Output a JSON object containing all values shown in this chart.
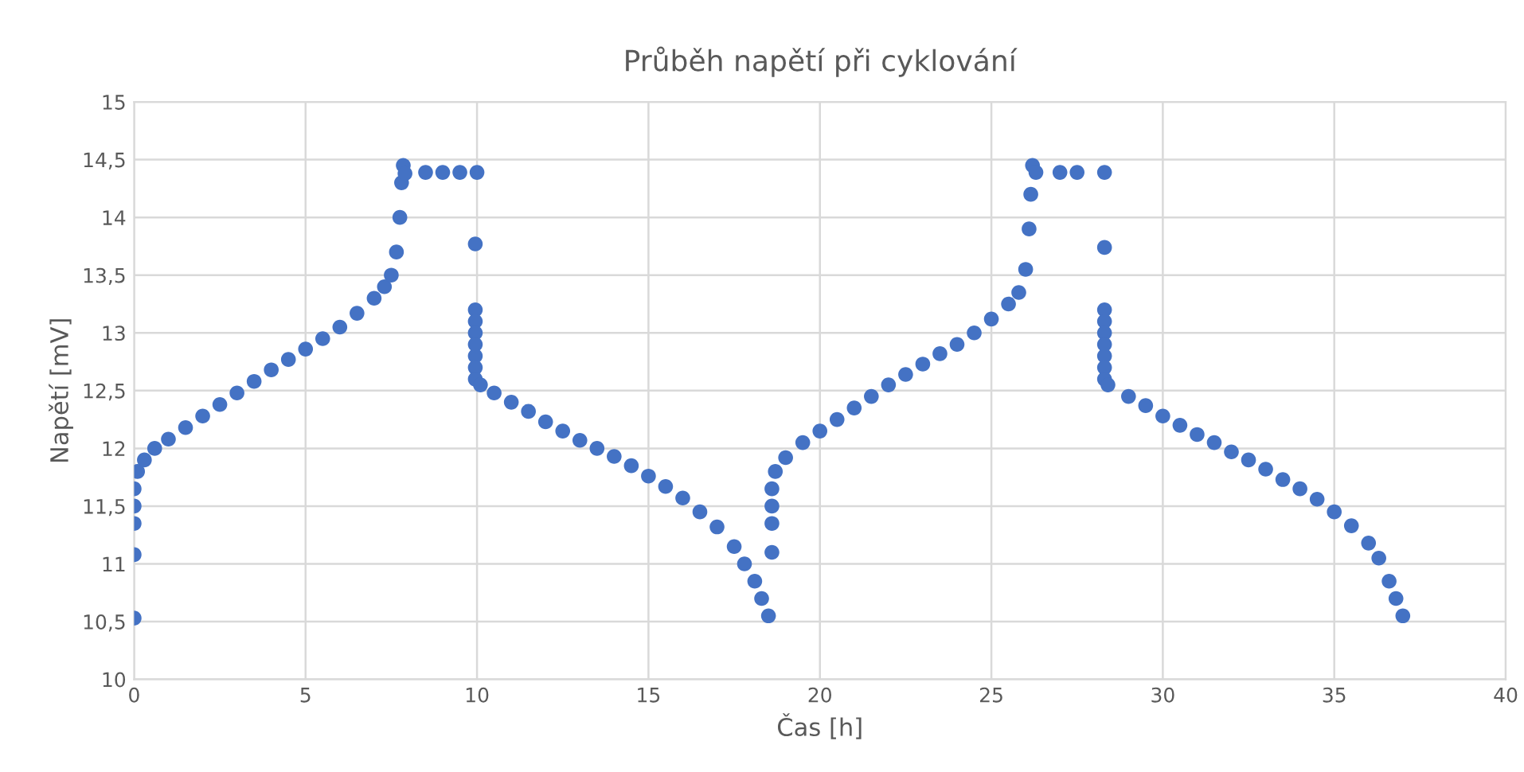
{
  "chart_data": {
    "type": "scatter",
    "title": "Průběh napětí při cyklování",
    "xlabel": "Čas [h]",
    "ylabel": "Napětí [mV]",
    "series": [
      {
        "color": "#4472c4",
        "x": [
          0,
          0,
          0,
          0,
          0,
          0.1,
          0.3,
          0.6,
          1,
          1.5,
          2,
          2.5,
          3,
          3.5,
          4,
          4.5,
          5,
          5.5,
          6,
          6.5,
          7,
          7.3,
          7.5,
          7.65,
          7.75,
          7.8,
          7.85,
          7.9,
          8.5,
          9,
          9.5,
          10,
          9.95,
          9.95,
          9.95,
          9.95,
          9.95,
          9.95,
          9.95,
          9.95,
          10.1,
          10.5,
          11,
          11.5,
          12,
          12.5,
          13,
          13.5,
          14,
          14.5,
          15,
          15.5,
          16,
          16.5,
          17,
          17.5,
          17.8,
          18.1,
          18.3,
          18.5,
          18.6,
          18.6,
          18.6,
          18.6,
          18.7,
          19,
          19.5,
          20,
          20.5,
          21,
          21.5,
          22,
          22.5,
          23,
          23.5,
          24,
          24.5,
          25,
          25.5,
          25.8,
          26,
          26.1,
          26.15,
          26.2,
          26.3,
          27,
          27.5,
          28.3,
          28.3,
          28.3,
          28.3,
          28.3,
          28.3,
          28.3,
          28.3,
          28.3,
          28.4,
          29,
          29.5,
          30,
          30.5,
          31,
          31.5,
          32,
          32.5,
          33,
          33.5,
          34,
          34.5,
          35,
          35.5,
          36,
          36.3,
          36.6,
          36.8,
          37
        ],
        "values": [
          10.53,
          11.08,
          11.35,
          11.5,
          11.65,
          11.8,
          11.9,
          12.0,
          12.08,
          12.18,
          12.28,
          12.38,
          12.48,
          12.58,
          12.68,
          12.77,
          12.86,
          12.95,
          13.05,
          13.17,
          13.3,
          13.4,
          13.5,
          13.7,
          14.0,
          14.3,
          14.45,
          14.38,
          14.39,
          14.39,
          14.39,
          14.39,
          13.77,
          13.2,
          13.1,
          13.0,
          12.9,
          12.8,
          12.7,
          12.6,
          12.55,
          12.48,
          12.4,
          12.32,
          12.23,
          12.15,
          12.07,
          12.0,
          11.93,
          11.85,
          11.76,
          11.67,
          11.57,
          11.45,
          11.32,
          11.15,
          11.0,
          10.85,
          10.7,
          10.55,
          11.1,
          11.35,
          11.5,
          11.65,
          11.8,
          11.92,
          12.05,
          12.15,
          12.25,
          12.35,
          12.45,
          12.55,
          12.64,
          12.73,
          12.82,
          12.9,
          13.0,
          13.12,
          13.25,
          13.35,
          13.55,
          13.9,
          14.2,
          14.45,
          14.39,
          14.39,
          14.39,
          14.39,
          13.74,
          13.2,
          13.1,
          13.0,
          12.9,
          12.8,
          12.7,
          12.6,
          12.55,
          12.45,
          12.37,
          12.28,
          12.2,
          12.12,
          12.05,
          11.97,
          11.9,
          11.82,
          11.73,
          11.65,
          11.56,
          11.45,
          11.33,
          11.18,
          11.05,
          10.85,
          10.7,
          10.55
        ]
      }
    ],
    "xlim": [
      0,
      40
    ],
    "xticks": [
      0,
      5,
      10,
      15,
      20,
      25,
      30,
      35,
      40
    ],
    "ylim": [
      10,
      15
    ],
    "yticks": [
      10,
      {
        "value": 10.5,
        "label": "10,5"
      },
      11,
      {
        "value": 11.5,
        "label": "11,5"
      },
      12,
      {
        "value": 12.5,
        "label": "12,5"
      },
      13,
      {
        "value": 13.5,
        "label": "13,5"
      },
      14,
      {
        "value": 14.5,
        "label": "14,5"
      },
      15
    ],
    "grid": true,
    "marker": "circle",
    "legend": false
  }
}
